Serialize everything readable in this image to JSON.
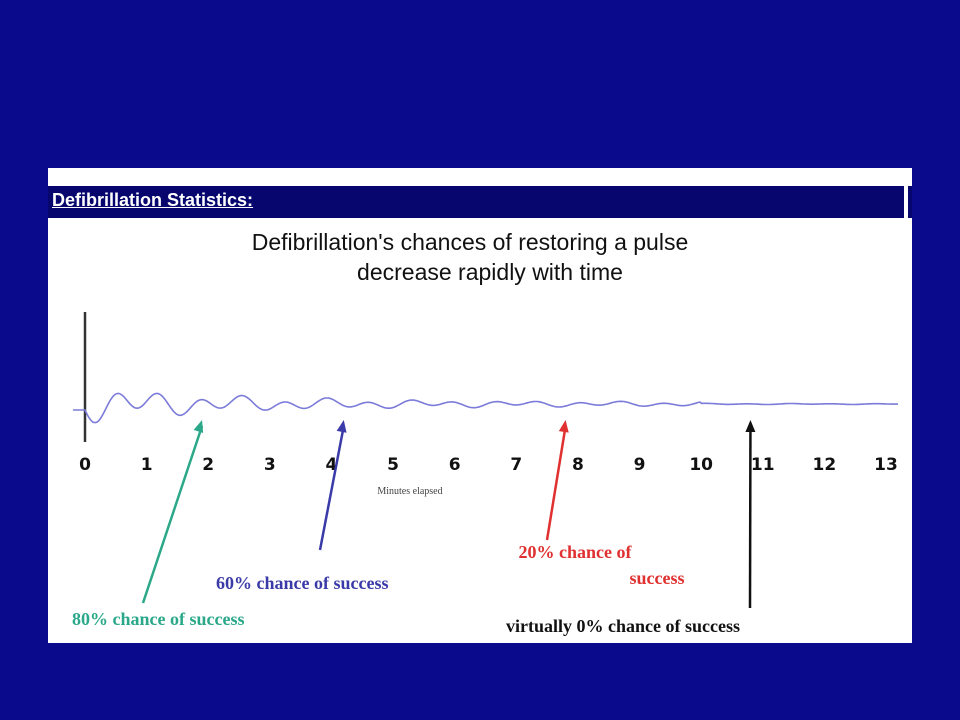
{
  "slide": {
    "background": "#0a0a8c"
  },
  "header": {
    "title": "Defibrillation Statistics:"
  },
  "chart_data": {
    "type": "line",
    "title_lines": [
      "Defibrillation's chances of restoring a pulse",
      "decrease rapidly with time"
    ],
    "xlabel": "Minutes elapsed",
    "ylabel": "",
    "x_ticks": [
      "0",
      "1",
      "2",
      "3",
      "4",
      "5",
      "6",
      "7",
      "8",
      "9",
      "10",
      "11",
      "12",
      "13"
    ],
    "xlim": [
      0,
      13
    ],
    "grid": false,
    "trace_color": "#7b7bd9",
    "annotations": [
      {
        "minute": 1.9,
        "lines": [
          "80% chance of success"
        ],
        "color": "#2aa889"
      },
      {
        "minute": 4.2,
        "lines": [
          "60% chance of success"
        ],
        "color": "#3a3aa8"
      },
      {
        "minute": 7.8,
        "lines": [
          "20% chance of",
          "success"
        ],
        "color": "#e03030"
      },
      {
        "minute": 10.8,
        "lines": [
          "virtually 0% chance of success"
        ],
        "color": "#111111"
      }
    ]
  }
}
